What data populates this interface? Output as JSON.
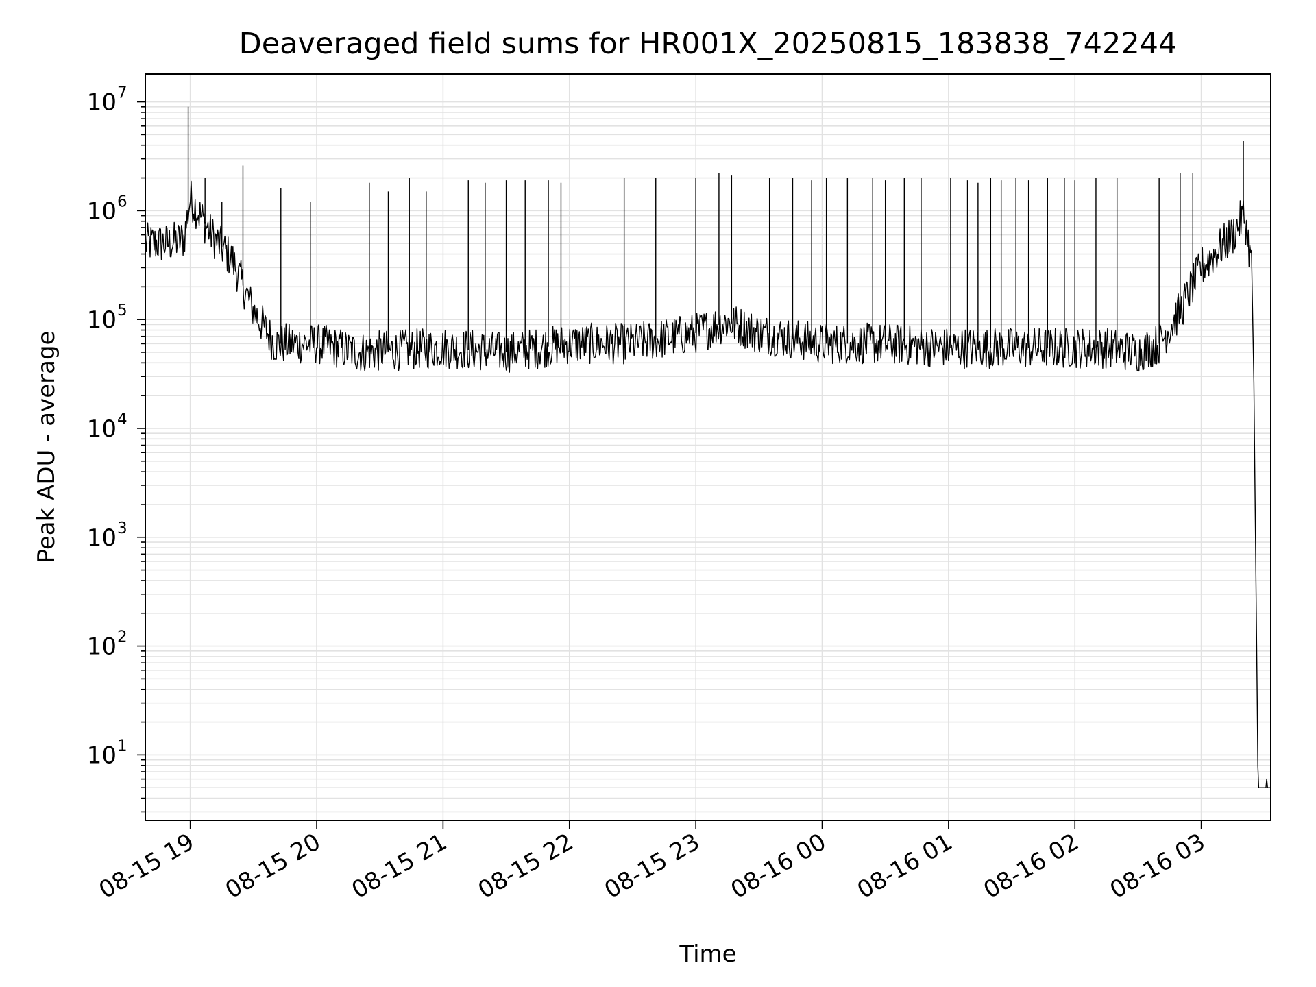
{
  "chart_data": {
    "type": "line",
    "title": "Deaveraged field sums for HR001X_20250815_183838_742244",
    "xlabel": "Time",
    "ylabel": "Peak ADU - average",
    "yscale": "log",
    "ylim": [
      2.5,
      18000000
    ],
    "xlim": [
      "2025-08-15 18:38:38",
      "2025-08-16 03:33:00"
    ],
    "grid": "on (major and minor)",
    "line_color": "#000000",
    "x_ticks": [
      {
        "label": "08-15 19",
        "t": "2025-08-15 19:00"
      },
      {
        "label": "08-15 20",
        "t": "2025-08-15 20:00"
      },
      {
        "label": "08-15 21",
        "t": "2025-08-15 21:00"
      },
      {
        "label": "08-15 22",
        "t": "2025-08-15 22:00"
      },
      {
        "label": "08-15 23",
        "t": "2025-08-15 23:00"
      },
      {
        "label": "08-16 00",
        "t": "2025-08-16 00:00"
      },
      {
        "label": "08-16 01",
        "t": "2025-08-16 01:00"
      },
      {
        "label": "08-16 02",
        "t": "2025-08-16 02:00"
      },
      {
        "label": "08-16 03",
        "t": "2025-08-16 03:00"
      }
    ],
    "y_ticks": [
      {
        "base": "10",
        "exp": "1"
      },
      {
        "base": "10",
        "exp": "2"
      },
      {
        "base": "10",
        "exp": "3"
      },
      {
        "base": "10",
        "exp": "4"
      },
      {
        "base": "10",
        "exp": "5"
      },
      {
        "base": "10",
        "exp": "6"
      },
      {
        "base": "10",
        "exp": "7"
      }
    ],
    "series": [
      {
        "baseline": {
          "x": [
            "2025-08-15 18:38",
            "2025-08-15 18:50",
            "2025-08-15 18:57",
            "2025-08-15 19:00",
            "2025-08-15 19:10",
            "2025-08-15 19:20",
            "2025-08-15 19:30",
            "2025-08-15 19:40",
            "2025-08-15 20:00",
            "2025-08-15 20:20",
            "2025-08-15 21:00",
            "2025-08-15 21:30",
            "2025-08-15 22:00",
            "2025-08-15 22:30",
            "2025-08-15 23:00",
            "2025-08-15 23:15",
            "2025-08-15 23:30",
            "2025-08-16 00:00",
            "2025-08-16 00:30",
            "2025-08-16 01:00",
            "2025-08-16 01:30",
            "2025-08-16 02:00",
            "2025-08-16 02:15",
            "2025-08-16 02:30",
            "2025-08-16 02:40",
            "2025-08-16 02:50",
            "2025-08-16 03:00",
            "2025-08-16 03:15",
            "2025-08-16 03:20",
            "2025-08-16 03:21",
            "2025-08-16 03:24",
            "2025-08-16 03:25",
            "2025-08-16 03:27",
            "2025-08-16 03:33"
          ],
          "y": [
            500000,
            500000,
            550000,
            1300000,
            600000,
            350000,
            120000,
            60000,
            60000,
            50000,
            55000,
            50000,
            60000,
            60000,
            75000,
            95000,
            75000,
            60000,
            60000,
            55000,
            55000,
            55000,
            55000,
            50000,
            60000,
            120000,
            300000,
            600000,
            900000,
            800000,
            300000,
            25000,
            5,
            5
          ]
        },
        "spikes": {
          "x": [
            "2025-08-15 18:59",
            "2025-08-15 19:07",
            "2025-08-15 19:15",
            "2025-08-15 19:25",
            "2025-08-15 19:43",
            "2025-08-15 19:57",
            "2025-08-15 20:25",
            "2025-08-15 20:34",
            "2025-08-15 20:44",
            "2025-08-15 20:52",
            "2025-08-15 21:12",
            "2025-08-15 21:20",
            "2025-08-15 21:30",
            "2025-08-15 21:39",
            "2025-08-15 21:50",
            "2025-08-15 21:56",
            "2025-08-15 22:26",
            "2025-08-15 22:41",
            "2025-08-15 23:00",
            "2025-08-15 23:11",
            "2025-08-15 23:17",
            "2025-08-15 23:35",
            "2025-08-15 23:46",
            "2025-08-15 23:55",
            "2025-08-16 00:02",
            "2025-08-16 00:12",
            "2025-08-16 00:24",
            "2025-08-16 00:30",
            "2025-08-16 00:39",
            "2025-08-16 00:47",
            "2025-08-16 01:01",
            "2025-08-16 01:09",
            "2025-08-16 01:14",
            "2025-08-16 01:20",
            "2025-08-16 01:25",
            "2025-08-16 01:32",
            "2025-08-16 01:38",
            "2025-08-16 01:47",
            "2025-08-16 01:55",
            "2025-08-16 02:00",
            "2025-08-16 02:10",
            "2025-08-16 02:20",
            "2025-08-16 02:40",
            "2025-08-16 02:50",
            "2025-08-16 02:56",
            "2025-08-16 03:20"
          ],
          "y": [
            9000000,
            2000000,
            1200000,
            2600000,
            1600000,
            1200000,
            1800000,
            1500000,
            2000000,
            1500000,
            1900000,
            1800000,
            1900000,
            1900000,
            1900000,
            1800000,
            2000000,
            2000000,
            2000000,
            2200000,
            2100000,
            2000000,
            2000000,
            1900000,
            2000000,
            2000000,
            2000000,
            1900000,
            2000000,
            2000000,
            2000000,
            1900000,
            1800000,
            2000000,
            1900000,
            2000000,
            1900000,
            2000000,
            2000000,
            1900000,
            2000000,
            2000000,
            2000000,
            2200000,
            2200000,
            4400000
          ]
        }
      }
    ]
  }
}
